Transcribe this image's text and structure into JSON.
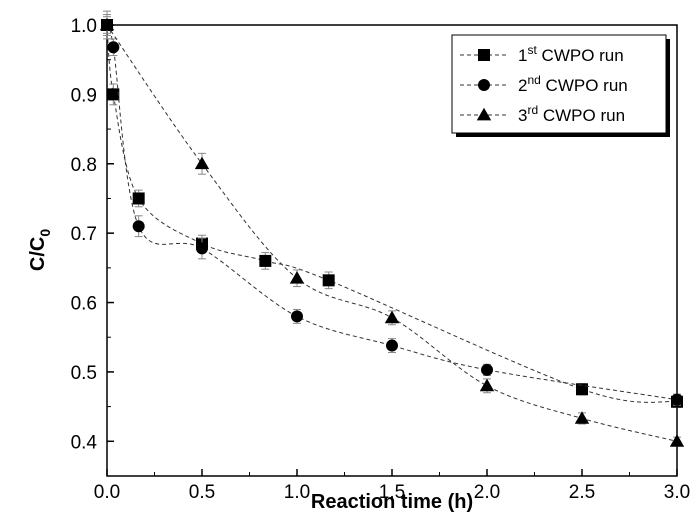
{
  "chart_data": {
    "type": "line",
    "xlabel": "Reaction time (h)",
    "ylabel_main": "C/C",
    "ylabel_sub": "0",
    "xlim": [
      0,
      3.0
    ],
    "ylim": [
      0.35,
      1.0
    ],
    "xticks": [
      "0.0",
      "0.5",
      "1.0",
      "1.5",
      "2.0",
      "2.5",
      "3.0"
    ],
    "yticks": [
      "0.4",
      "0.5",
      "0.6",
      "0.7",
      "0.8",
      "0.9",
      "1.0"
    ],
    "legend_position": "top-right",
    "series": [
      {
        "name_prefix": "1",
        "name_sup": "st",
        "name_suffix": " CWPO run",
        "marker": "square",
        "x": [
          0,
          0.0333,
          0.1667,
          0.5,
          0.8333,
          1.1667,
          2.5,
          3.0
        ],
        "y": [
          1.0,
          0.9,
          0.75,
          0.685,
          0.66,
          0.632,
          0.475,
          0.457
        ],
        "err": [
          0.015,
          0.015,
          0.012,
          0.012,
          0.012,
          0.012,
          0.008,
          0.008
        ]
      },
      {
        "name_prefix": "2",
        "name_sup": "nd",
        "name_suffix": " CWPO run",
        "marker": "circle",
        "x": [
          0,
          0.0333,
          0.1667,
          0.5,
          1.0,
          1.5,
          2.0,
          3.0
        ],
        "y": [
          1.0,
          0.968,
          0.71,
          0.678,
          0.58,
          0.538,
          0.503,
          0.46
        ],
        "err": [
          0.012,
          0.012,
          0.015,
          0.015,
          0.01,
          0.01,
          0.008,
          0.008
        ]
      },
      {
        "name_prefix": "3",
        "name_sup": "rd",
        "name_suffix": " CWPO run",
        "marker": "triangle",
        "x": [
          0,
          0.5,
          1.0,
          1.5,
          2.0,
          2.5,
          3.0
        ],
        "y": [
          1.0,
          0.8,
          0.635,
          0.578,
          0.48,
          0.433,
          0.4
        ],
        "err": [
          0.02,
          0.015,
          0.012,
          0.01,
          0.01,
          0.008,
          0.006
        ]
      }
    ]
  }
}
